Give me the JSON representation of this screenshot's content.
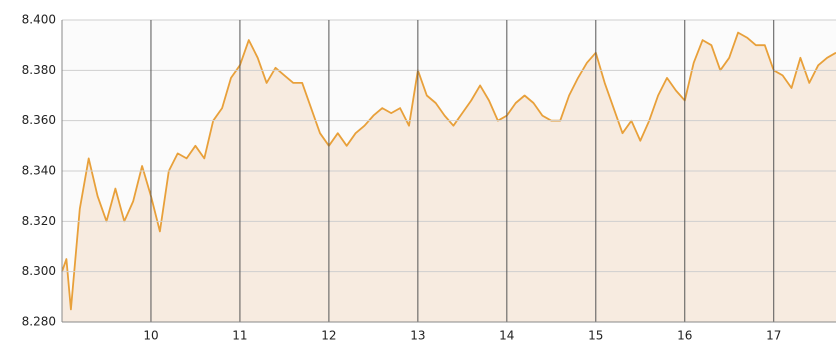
{
  "chart_data": {
    "type": "area",
    "x": [
      9.0,
      9.05,
      9.1,
      9.2,
      9.3,
      9.4,
      9.5,
      9.6,
      9.7,
      9.8,
      9.9,
      10.0,
      10.1,
      10.2,
      10.3,
      10.4,
      10.5,
      10.6,
      10.7,
      10.8,
      10.9,
      11.0,
      11.1,
      11.2,
      11.3,
      11.4,
      11.5,
      11.6,
      11.7,
      11.8,
      11.9,
      12.0,
      12.1,
      12.2,
      12.3,
      12.4,
      12.5,
      12.6,
      12.7,
      12.8,
      12.9,
      13.0,
      13.1,
      13.2,
      13.3,
      13.4,
      13.5,
      13.6,
      13.7,
      13.8,
      13.9,
      14.0,
      14.1,
      14.2,
      14.3,
      14.4,
      14.5,
      14.6,
      14.7,
      14.8,
      14.9,
      15.0,
      15.1,
      15.2,
      15.3,
      15.4,
      15.5,
      15.6,
      15.7,
      15.8,
      15.9,
      16.0,
      16.1,
      16.2,
      16.3,
      16.4,
      16.5,
      16.6,
      16.7,
      16.8,
      16.9,
      17.0,
      17.1,
      17.2,
      17.3,
      17.4,
      17.5,
      17.6,
      17.7
    ],
    "values": [
      8.3,
      8.305,
      8.285,
      8.325,
      8.345,
      8.33,
      8.32,
      8.333,
      8.32,
      8.328,
      8.342,
      8.33,
      8.316,
      8.34,
      8.347,
      8.345,
      8.35,
      8.345,
      8.36,
      8.365,
      8.377,
      8.382,
      8.392,
      8.385,
      8.375,
      8.381,
      8.378,
      8.375,
      8.375,
      8.365,
      8.355,
      8.35,
      8.355,
      8.35,
      8.355,
      8.358,
      8.362,
      8.365,
      8.363,
      8.365,
      8.358,
      8.38,
      8.37,
      8.367,
      8.362,
      8.358,
      8.363,
      8.368,
      8.374,
      8.368,
      8.36,
      8.362,
      8.367,
      8.37,
      8.367,
      8.362,
      8.36,
      8.36,
      8.37,
      8.377,
      8.383,
      8.387,
      8.375,
      8.365,
      8.355,
      8.36,
      8.352,
      8.36,
      8.37,
      8.377,
      8.372,
      8.368,
      8.383,
      8.392,
      8.39,
      8.38,
      8.385,
      8.395,
      8.393,
      8.39,
      8.39,
      8.38,
      8.378,
      8.373,
      8.385,
      8.375,
      8.382,
      8.385,
      8.387
    ],
    "color": "#e8a03a",
    "fill": "#f7ebe0",
    "xlim": [
      9.0,
      17.7
    ],
    "xticks": [
      10,
      11,
      12,
      13,
      14,
      15,
      16,
      17
    ],
    "ylim": [
      8.28,
      8.4
    ],
    "yticks": [
      {
        "value": 8.28,
        "label": "8.280"
      },
      {
        "value": 8.3,
        "label": "8.300"
      },
      {
        "value": 8.32,
        "label": "8.320"
      },
      {
        "value": 8.34,
        "label": "8.340"
      },
      {
        "value": 8.36,
        "label": "8.360"
      },
      {
        "value": 8.38,
        "label": "8.380"
      },
      {
        "value": 8.4,
        "label": "8.400"
      }
    ],
    "grid": true
  }
}
